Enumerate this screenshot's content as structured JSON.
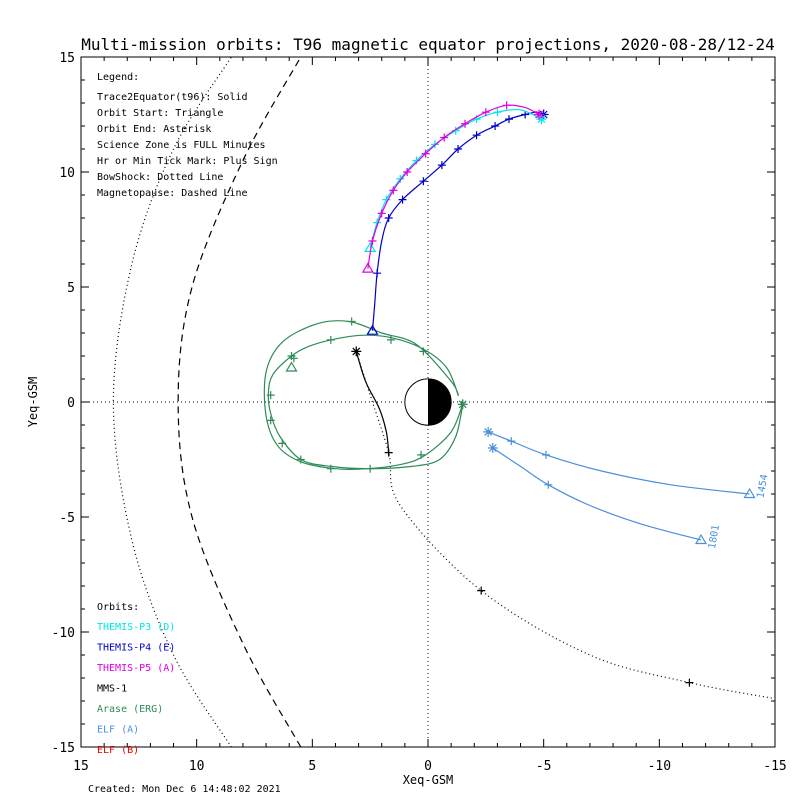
{
  "chart_data": {
    "type": "line",
    "title": "Multi-mission orbits: T96 magnetic equator projections, 2020-08-28/12-24",
    "xlabel": "Xeq-GSM",
    "ylabel": "Yeq-GSM",
    "xlim": [
      15,
      -15
    ],
    "ylim": [
      15,
      -15
    ],
    "xticks": [
      15,
      10,
      5,
      0,
      -5,
      -10,
      -15
    ],
    "yticks": [
      -15,
      -10,
      -5,
      0,
      5,
      10,
      15
    ],
    "grid": "dotted zero lines",
    "created": "Created: Mon Dec  6 14:48:02 2021",
    "legend": {
      "heading": "Legend:",
      "lines": [
        "Trace2Equator(t96): Solid",
        "Orbit Start: Triangle",
        "Orbit End: Asterisk",
        "Science Zone is FULL Minutes",
        "Hr or Min Tick Mark: Plus Sign",
        "BowShock: Dotted Line",
        "Magnetopause: Dashed Line"
      ]
    },
    "orbits_heading": "Orbits:",
    "orbit_legend": [
      {
        "name": "THEMIS-P3 (D)",
        "color": "#00e5e5"
      },
      {
        "name": "THEMIS-P4 (E)",
        "color": "#0000c8"
      },
      {
        "name": "THEMIS-P5 (A)",
        "color": "#e000e0"
      },
      {
        "name": "MMS-1",
        "color": "#000000"
      },
      {
        "name": "Arase (ERG)",
        "color": "#2e8b57"
      },
      {
        "name": "ELF (A)",
        "color": "#4a90d9"
      },
      {
        "name": "ELF (B)",
        "color": "#e00000"
      }
    ],
    "boundaries": {
      "bowshock": {
        "style": "dotted",
        "color": "#000000",
        "points": [
          [
            8.5,
            -15
          ],
          [
            11,
            -11
          ],
          [
            12.8,
            -6
          ],
          [
            13.6,
            0
          ],
          [
            12.8,
            6
          ],
          [
            11,
            11
          ],
          [
            8.5,
            15
          ]
        ]
      },
      "magnetopause": {
        "style": "dashed",
        "color": "#000000",
        "points": [
          [
            5.5,
            -15
          ],
          [
            8,
            -10.5
          ],
          [
            10.2,
            -5
          ],
          [
            10.8,
            0
          ],
          [
            10.2,
            5
          ],
          [
            8,
            10.5
          ],
          [
            5.5,
            15
          ]
        ]
      }
    },
    "series": [
      {
        "name": "MMS-1",
        "color": "#000000",
        "style": "dotted",
        "points": [
          [
            3.1,
            2.2
          ],
          [
            2.5,
            0.3
          ],
          [
            1.7,
            -2.2
          ],
          [
            1.2,
            -4.5
          ],
          [
            -2.3,
            -8.2
          ],
          [
            -7,
            -11
          ],
          [
            -11.3,
            -12.2
          ],
          [
            -15,
            -12.9
          ]
        ],
        "ticks": [
          [
            1.7,
            -2.2
          ],
          [
            -2.3,
            -8.2
          ],
          [
            -11.3,
            -12.2
          ]
        ],
        "start": null,
        "end": [
          3.1,
          2.2
        ]
      },
      {
        "name": "MMS-1 trace",
        "color": "#000000",
        "style": "solid",
        "points": [
          [
            3.1,
            2.2
          ],
          [
            2.7,
            0.9
          ],
          [
            2.1,
            -0.3
          ],
          [
            1.8,
            -1.3
          ],
          [
            1.7,
            -2.2
          ]
        ],
        "ticks": [],
        "start": null,
        "end": null
      },
      {
        "name": "Arase (ERG)",
        "color": "#2e8b57",
        "style": "solid",
        "points": [
          [
            -1.5,
            -0.1
          ],
          [
            -1.2,
            -1.5
          ],
          [
            -0.5,
            -2.5
          ],
          [
            0.7,
            -2.8
          ],
          [
            2.5,
            -2.9
          ],
          [
            4.2,
            -2.8
          ],
          [
            5.5,
            -2.5
          ],
          [
            6.4,
            -1.5
          ],
          [
            6.8,
            -0.5
          ],
          [
            6.9,
            0.4
          ],
          [
            6.7,
            1.2
          ],
          [
            5.9,
            2.0
          ],
          [
            5.2,
            2.4
          ],
          [
            4.2,
            2.7
          ],
          [
            2.9,
            2.9
          ],
          [
            1.6,
            2.8
          ],
          [
            0.2,
            2.3
          ],
          [
            -0.8,
            1.5
          ],
          [
            -1.3,
            0.3
          ],
          [
            -1.0,
            0.9
          ],
          [
            0.5,
            2.5
          ],
          [
            2.0,
            3.0
          ],
          [
            3.4,
            3.5
          ],
          [
            4.8,
            3.4
          ],
          [
            6.3,
            2.6
          ],
          [
            7.0,
            1.3
          ],
          [
            7.0,
            -0.6
          ],
          [
            6.5,
            -1.9
          ],
          [
            5.5,
            -2.6
          ],
          [
            4.0,
            -2.9
          ],
          [
            2.6,
            -2.9
          ],
          [
            1.1,
            -2.7
          ],
          [
            0.1,
            -2.3
          ],
          [
            -1.0,
            -1.3
          ],
          [
            -1.5,
            -0.1
          ]
        ],
        "ticks": [
          [
            -1.5,
            -0.1
          ],
          [
            0.3,
            -2.3
          ],
          [
            2.5,
            -2.9
          ],
          [
            4.2,
            -2.9
          ],
          [
            5.5,
            -2.5
          ],
          [
            6.3,
            -1.8
          ],
          [
            6.8,
            -0.8
          ],
          [
            6.8,
            0.3
          ],
          [
            5.8,
            1.9
          ],
          [
            4.2,
            2.7
          ],
          [
            1.6,
            2.7
          ],
          [
            0.2,
            2.2
          ],
          [
            3.3,
            3.5
          ],
          [
            5.9,
            2.0
          ]
        ],
        "start": [
          5.9,
          1.5
        ],
        "end": [
          -1.5,
          -0.1
        ]
      },
      {
        "name": "THEMIS-P4 (E)",
        "color": "#0000c8",
        "style": "solid",
        "points": [
          [
            2.4,
            3.1
          ],
          [
            2.3,
            4.3
          ],
          [
            2.2,
            5.6
          ],
          [
            2.0,
            7.0
          ],
          [
            1.7,
            8.0
          ],
          [
            1.1,
            8.8
          ],
          [
            0.2,
            9.6
          ],
          [
            -0.6,
            10.3
          ],
          [
            -1.3,
            11.0
          ],
          [
            -2.1,
            11.6
          ],
          [
            -2.9,
            12.0
          ],
          [
            -3.5,
            12.3
          ],
          [
            -4.2,
            12.5
          ],
          [
            -4.7,
            12.6
          ],
          [
            -5.0,
            12.5
          ]
        ],
        "ticks": [
          [
            2.2,
            5.6
          ],
          [
            1.7,
            8.0
          ],
          [
            1.1,
            8.8
          ],
          [
            0.2,
            9.6
          ],
          [
            -0.6,
            10.3
          ],
          [
            -1.3,
            11.0
          ],
          [
            -2.1,
            11.6
          ],
          [
            -2.9,
            12.0
          ],
          [
            -3.5,
            12.3
          ],
          [
            -4.2,
            12.5
          ]
        ],
        "start": [
          2.4,
          3.1
        ],
        "end": [
          -5.0,
          12.5
        ]
      },
      {
        "name": "THEMIS-P3 (D)",
        "color": "#00e5e5",
        "style": "solid",
        "points": [
          [
            2.5,
            6.7
          ],
          [
            2.2,
            7.8
          ],
          [
            1.8,
            8.8
          ],
          [
            1.2,
            9.7
          ],
          [
            0.5,
            10.5
          ],
          [
            -0.3,
            11.2
          ],
          [
            -1.2,
            11.8
          ],
          [
            -2.1,
            12.3
          ],
          [
            -3.0,
            12.6
          ],
          [
            -4.0,
            12.7
          ],
          [
            -4.9,
            12.3
          ]
        ],
        "ticks": [
          [
            2.2,
            7.8
          ],
          [
            1.8,
            8.8
          ],
          [
            1.2,
            9.7
          ],
          [
            0.5,
            10.5
          ],
          [
            -0.3,
            11.2
          ],
          [
            -1.2,
            11.8
          ],
          [
            -2.1,
            12.3
          ],
          [
            -3.0,
            12.6
          ]
        ],
        "start": [
          2.5,
          6.7
        ],
        "end": [
          -4.9,
          12.3
        ]
      },
      {
        "name": "THEMIS-P5 (A)",
        "color": "#e000e0",
        "style": "solid",
        "points": [
          [
            2.6,
            5.8
          ],
          [
            2.4,
            7.0
          ],
          [
            2.0,
            8.2
          ],
          [
            1.5,
            9.2
          ],
          [
            0.9,
            10.0
          ],
          [
            0.1,
            10.8
          ],
          [
            -0.7,
            11.5
          ],
          [
            -1.6,
            12.1
          ],
          [
            -2.5,
            12.6
          ],
          [
            -3.4,
            12.9
          ],
          [
            -4.2,
            12.8
          ],
          [
            -4.8,
            12.5
          ]
        ],
        "ticks": [
          [
            2.4,
            7.0
          ],
          [
            2.0,
            8.2
          ],
          [
            1.5,
            9.2
          ],
          [
            0.9,
            10.0
          ],
          [
            0.1,
            10.8
          ],
          [
            -0.7,
            11.5
          ],
          [
            -1.6,
            12.1
          ],
          [
            -2.5,
            12.6
          ],
          [
            -3.4,
            12.9
          ]
        ],
        "start": [
          2.6,
          5.8
        ],
        "end": [
          -4.8,
          12.5
        ]
      },
      {
        "name": "ELF (A) 1801",
        "color": "#4a90d9",
        "style": "solid",
        "points": [
          [
            -2.8,
            -2.0
          ],
          [
            -4.0,
            -2.8
          ],
          [
            -5.2,
            -3.6
          ],
          [
            -7.0,
            -4.5
          ],
          [
            -9.2,
            -5.3
          ],
          [
            -11.8,
            -6.0
          ]
        ],
        "ticks": [
          [
            -5.2,
            -3.6
          ]
        ],
        "start": [
          -11.8,
          -6.0
        ],
        "end": [
          -2.8,
          -2.0
        ]
      },
      {
        "name": "ELF (A) 1454",
        "color": "#4a90d9",
        "style": "solid",
        "points": [
          [
            -2.6,
            -1.3
          ],
          [
            -3.6,
            -1.7
          ],
          [
            -5.1,
            -2.3
          ],
          [
            -7.5,
            -3.0
          ],
          [
            -10.5,
            -3.6
          ],
          [
            -13.9,
            -4.0
          ]
        ],
        "ticks": [
          [
            -3.6,
            -1.7
          ],
          [
            -5.1,
            -2.3
          ]
        ],
        "start": [
          -13.9,
          -4.0
        ],
        "end": [
          -2.6,
          -1.3
        ]
      }
    ],
    "annotations": [
      {
        "text": "1801",
        "x": -12.4,
        "y": -6.4,
        "color": "#4a90d9",
        "rotate": -80
      },
      {
        "text": "1454",
        "x": -14.5,
        "y": -4.2,
        "color": "#4a90d9",
        "rotate": -80
      }
    ],
    "earth": {
      "x": 0,
      "y": 0,
      "r": 1,
      "day_side": "left",
      "night_side": "right"
    }
  }
}
